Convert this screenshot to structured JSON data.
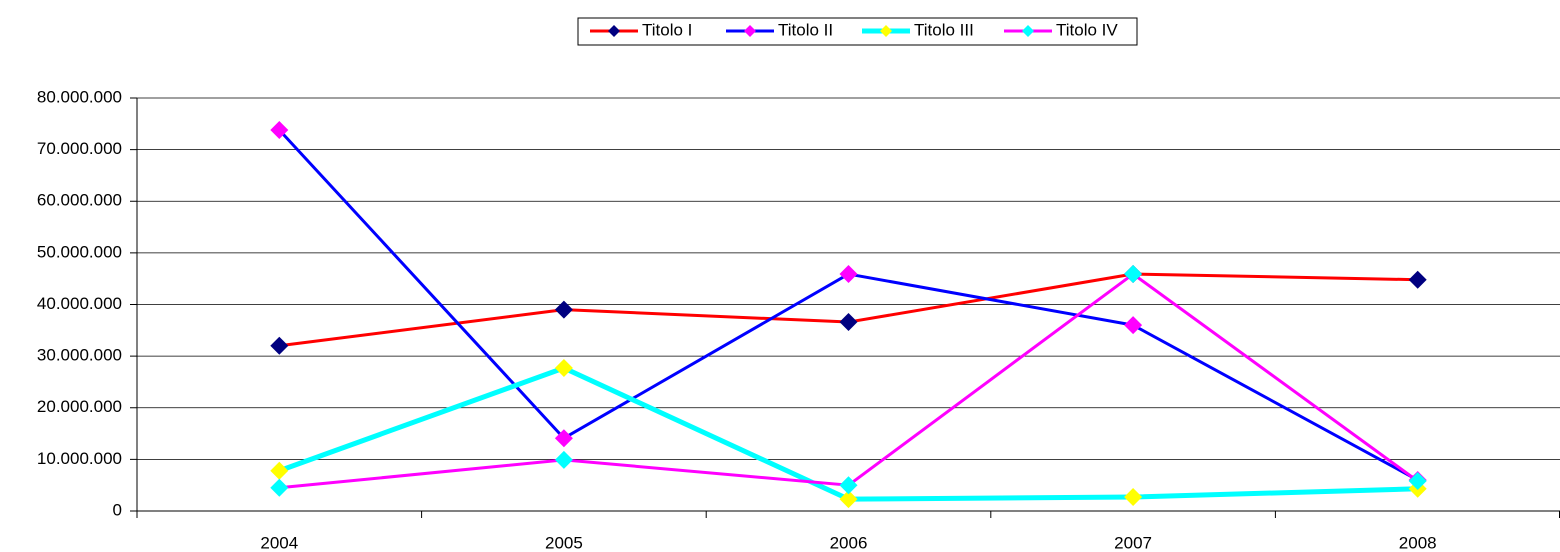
{
  "chart_data": {
    "type": "line",
    "categories": [
      "2004",
      "2005",
      "2006",
      "2007",
      "2008"
    ],
    "series": [
      {
        "name": "Titolo I",
        "color": "#ff0000",
        "marker_color": "#000080",
        "values": [
          32000000,
          39000000,
          36600000,
          45900000,
          44800000
        ]
      },
      {
        "name": "Titolo II",
        "color": "#0000ff",
        "marker_color": "#ff00ff",
        "values": [
          73800000,
          14100000,
          45900000,
          36000000,
          6000000
        ]
      },
      {
        "name": "Titolo III",
        "color": "#00ffff",
        "marker_color": "#ffff00",
        "values": [
          7800000,
          27700000,
          2300000,
          2700000,
          4300000
        ]
      },
      {
        "name": "Titolo IV",
        "color": "#ff00ff",
        "marker_color": "#00ffff",
        "values": [
          4500000,
          9900000,
          5000000,
          45900000,
          5800000
        ]
      }
    ],
    "ylim": [
      0,
      80000000
    ],
    "yticks": [
      0,
      {
        "value": 10000000,
        "label": "10.000.000"
      },
      {
        "value": 20000000,
        "label": "20.000.000"
      },
      {
        "value": 30000000,
        "label": "30.000.000"
      },
      {
        "value": 40000000,
        "label": "40.000.000"
      },
      {
        "value": 50000000,
        "label": "50.000.000"
      },
      {
        "value": 60000000,
        "label": "60.000.000"
      },
      {
        "value": 70000000,
        "label": "70.000.000"
      },
      {
        "value": 80000000,
        "label": "80.000.000"
      }
    ],
    "grid": true,
    "legend": "top"
  }
}
